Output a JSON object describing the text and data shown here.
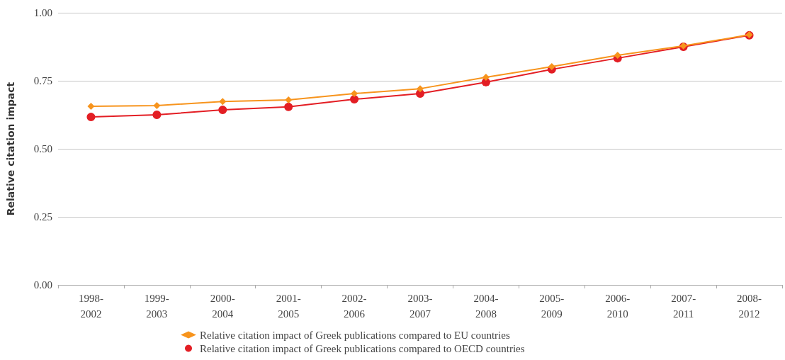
{
  "chart_data": {
    "type": "line",
    "ylabel": "Relative citation impact",
    "categories": [
      "1998-2002",
      "1999-2003",
      "2000-2004",
      "2001-2005",
      "2002-2006",
      "2003-2007",
      "2004-2008",
      "2005-2009",
      "2006-2010",
      "2007-2011",
      "2008-2012"
    ],
    "series": [
      {
        "name": "Relative citation impact of Greek publications compared to EU countries",
        "color": "#f7941d",
        "marker": "diamond",
        "values": [
          0.656,
          0.659,
          0.674,
          0.68,
          0.703,
          0.721,
          0.763,
          0.802,
          0.844,
          0.878,
          0.919
        ]
      },
      {
        "name": "Relative citation impact of Greek publications compared to OECD countries",
        "color": "#e31e24",
        "marker": "circle",
        "values": [
          0.617,
          0.625,
          0.643,
          0.654,
          0.682,
          0.703,
          0.745,
          0.792,
          0.833,
          0.875,
          0.917
        ]
      }
    ],
    "ylim": [
      0,
      1
    ],
    "yticks": [
      {
        "value": 0,
        "label": "0.00"
      },
      {
        "value": 0.25,
        "label": "0.25"
      },
      {
        "value": 0.5,
        "label": "0.50"
      },
      {
        "value": 0.75,
        "label": "0.75"
      },
      {
        "value": 1,
        "label": "1.00"
      }
    ],
    "grid": "y",
    "legend": "bottom",
    "line_style": "solid"
  }
}
